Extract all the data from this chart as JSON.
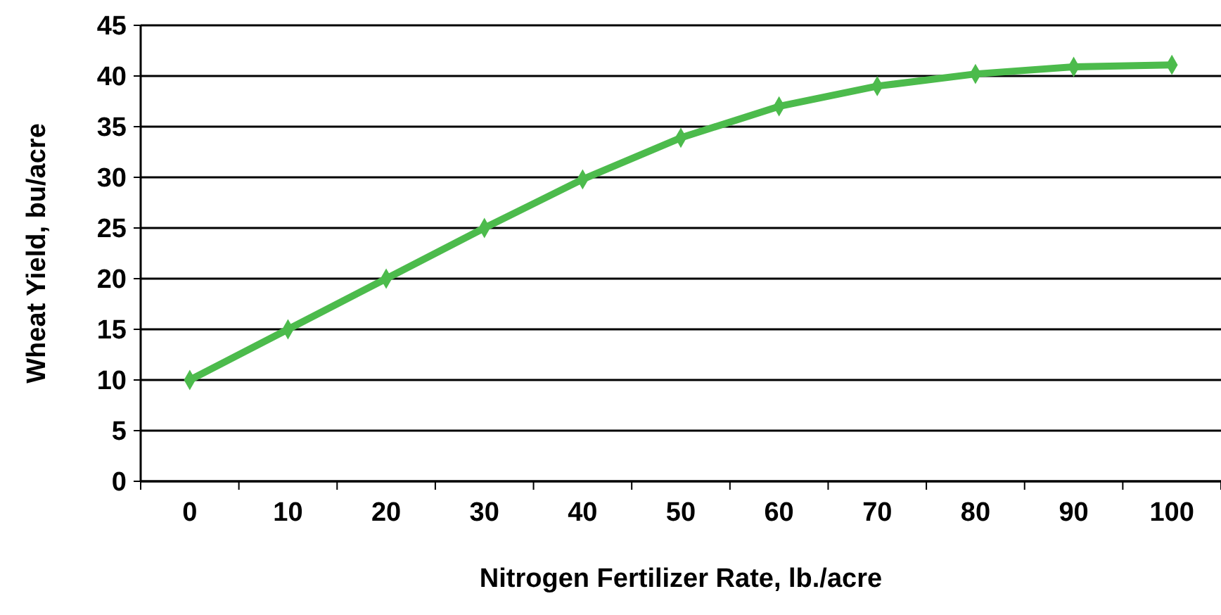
{
  "chart_data": {
    "type": "line",
    "xlabel": "Nitrogen Fertilizer Rate, lb./acre",
    "ylabel": "Wheat Yield, bu/acre",
    "categories": [
      "0",
      "10",
      "20",
      "30",
      "40",
      "50",
      "60",
      "70",
      "80",
      "90",
      "100"
    ],
    "series": [
      {
        "color": "#4cbb4c",
        "values": [
          10,
          15,
          20,
          25,
          29.8,
          33.9,
          37,
          39,
          40.2,
          40.9,
          41.1
        ]
      }
    ],
    "ylim": [
      0,
      45
    ],
    "yticks": [
      0,
      5,
      10,
      15,
      20,
      25,
      30,
      35,
      40,
      45
    ],
    "grid": "y",
    "marker": "diamond",
    "line_style": "solid"
  }
}
